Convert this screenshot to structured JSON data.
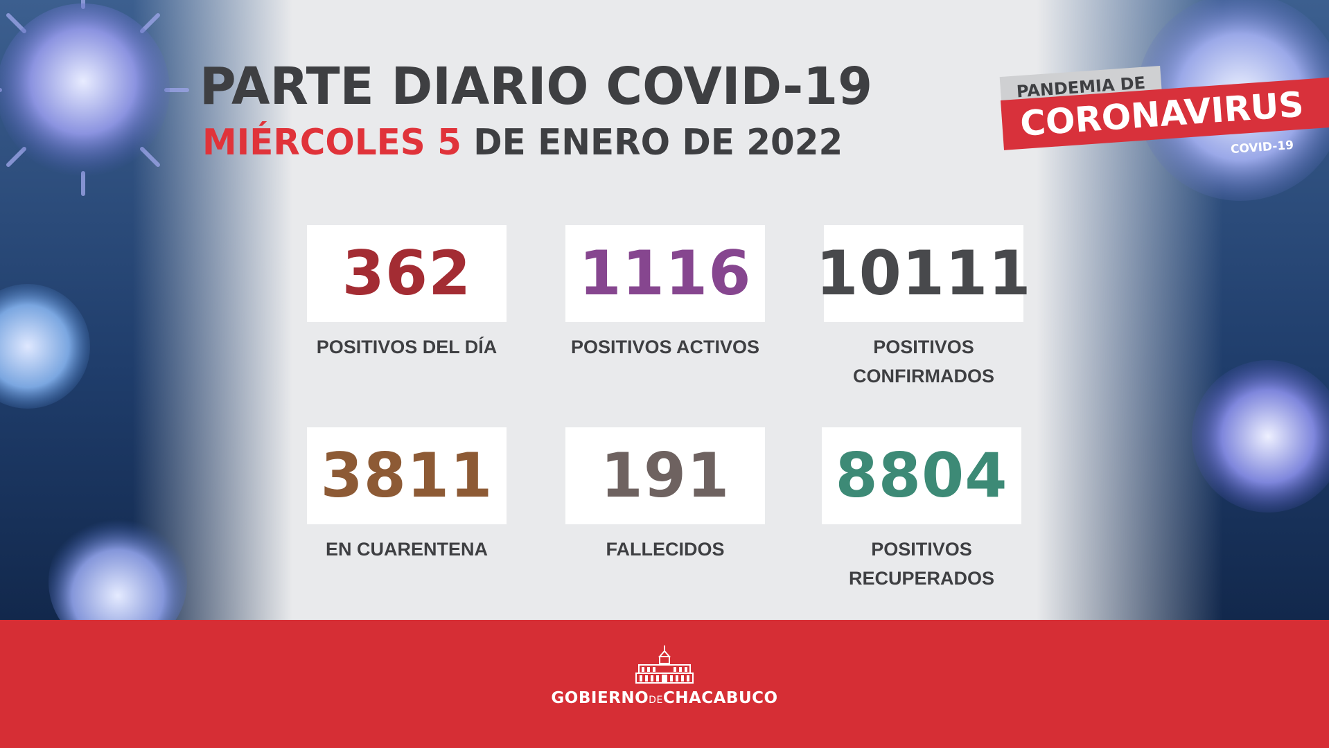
{
  "header": {
    "title": "PARTE DIARIO COVID-19",
    "date_highlight": "MIÉRCOLES 5",
    "date_rest": "DE ENERO DE 2022"
  },
  "badge": {
    "top": "PANDEMIA DE",
    "main": "CORONAVIRUS",
    "sub": "COVID-19"
  },
  "stats": [
    {
      "value": "362",
      "label_line1": "POSITIVOS DEL DÍA",
      "label_line2": "",
      "color": "#a32c33"
    },
    {
      "value": "1116",
      "label_line1": "POSITIVOS ACTIVOS",
      "label_line2": "",
      "color": "#86468f"
    },
    {
      "value": "10111",
      "label_line1": "POSITIVOS",
      "label_line2": "CONFIRMADOS",
      "color": "#48494c"
    },
    {
      "value": "3811",
      "label_line1": "EN CUARENTENA",
      "label_line2": "",
      "color": "#8d5a35"
    },
    {
      "value": "191",
      "label_line1": "FALLECIDOS",
      "label_line2": "",
      "color": "#6e6260"
    },
    {
      "value": "8804",
      "label_line1": "POSITIVOS",
      "label_line2": "RECUPERADOS",
      "color": "#3d8a76"
    }
  ],
  "footer": {
    "text_left": "GOBIERNO",
    "text_small": "DE",
    "text_right": "CHACABUCO"
  },
  "icons": [
    "virus-icon",
    "town-hall-icon"
  ]
}
